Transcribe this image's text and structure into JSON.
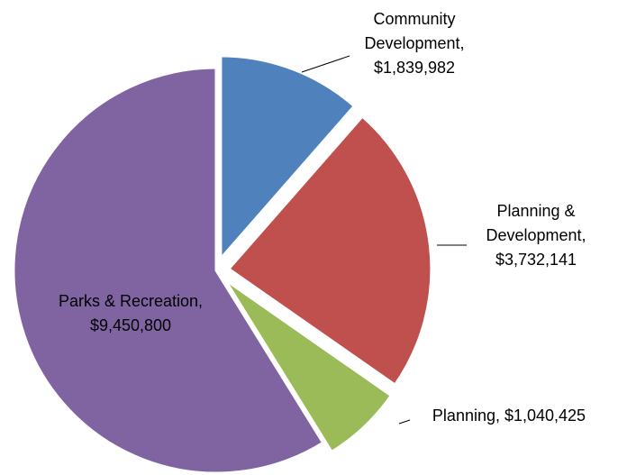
{
  "chart_data": {
    "type": "pie",
    "values": [
      1839982,
      3732141,
      1040425,
      9450800
    ],
    "value_labels": [
      "Community Development, $1,839,982",
      "Planning & Development, $3,732,141",
      "Planning, $1,040,425",
      "Parks & Recreation, $9,450,800"
    ],
    "colors": [
      "#4f81bd",
      "#c0504d",
      "#9bbb59",
      "#8064a2"
    ]
  }
}
